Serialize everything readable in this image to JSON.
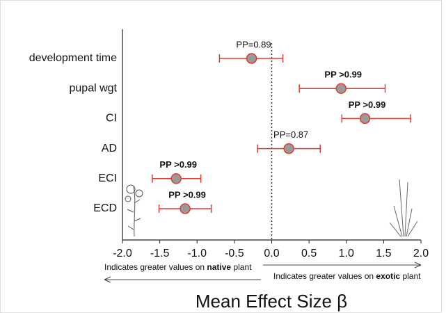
{
  "chart_data": {
    "type": "forest",
    "categories": [
      "development time",
      "pupal wgt",
      "CI",
      "AD",
      "ECI",
      "ECD"
    ],
    "values": [
      -0.27,
      0.93,
      1.25,
      0.23,
      -1.28,
      -1.16
    ],
    "lower": [
      -0.7,
      0.37,
      0.94,
      -0.19,
      -1.6,
      -1.51
    ],
    "upper": [
      0.15,
      1.52,
      1.86,
      0.65,
      -0.95,
      -0.81
    ],
    "annotations": [
      "PP=0.89",
      "PP >0.99",
      "PP >0.99",
      "PP=0.87",
      "PP >0.99",
      "PP >0.99"
    ],
    "annotation_bold": [
      false,
      true,
      true,
      false,
      true,
      true
    ],
    "color": "#e53a2e",
    "marker_fill": "#9a9a9a",
    "xlim": [
      -2,
      2
    ],
    "xticks": [
      {
        "value": -2,
        "label": "-2.0"
      },
      -1.5,
      {
        "value": -1,
        "label": "-1.0"
      },
      -0.5,
      {
        "value": 0,
        "label": "0.0"
      },
      0.5,
      {
        "value": 1,
        "label": "1.0"
      },
      1.5,
      {
        "value": 2,
        "label": "2.0"
      }
    ],
    "reference_line": 0,
    "left_note": [
      "Indicates greater values on ",
      "native",
      " plant"
    ],
    "right_note": [
      "Indicates greater values on ",
      "exotic",
      " plant"
    ],
    "xlabel": "Mean Effect Size β"
  }
}
